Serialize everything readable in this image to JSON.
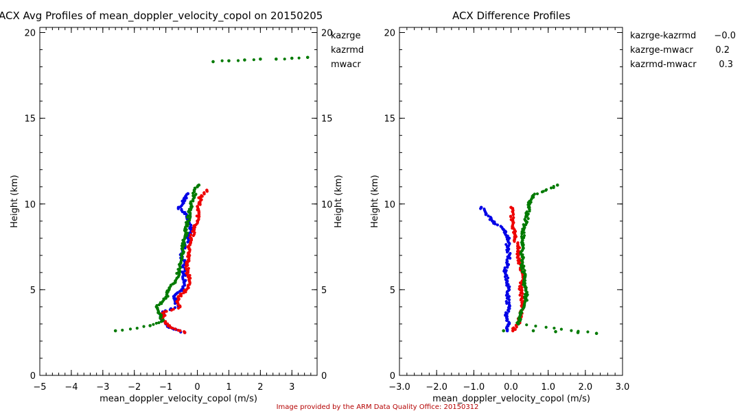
{
  "colors": {
    "blue": "#0000e6",
    "red": "#ee0000",
    "green": "#007a00",
    "axis": "#000000",
    "credit": "#b40000"
  },
  "credit": "Image provided by the ARM Data Quality Office: 20150312",
  "chart_data": [
    {
      "type": "scatter",
      "title": "ACX Avg Profiles of mean_doppler_velocity_copol on 20150205",
      "xlabel": "mean_doppler_velocity_copol (m/s)",
      "ylabel": "Height (km)",
      "ylabel_right": "Height (km)",
      "xlim": [
        -5,
        3.8
      ],
      "ylim": [
        0,
        20.3
      ],
      "x_ticks": [
        -5,
        -4,
        -3,
        -2,
        -1,
        0,
        1,
        2,
        3
      ],
      "y_ticks": [
        0,
        5,
        10,
        15,
        20
      ],
      "grid": false,
      "legend": "top-right",
      "series": [
        {
          "name": "kazrge",
          "color": "blue",
          "x": [
            -0.4,
            -0.55,
            -0.75,
            -0.9,
            -1.0,
            -1.15,
            -1.1,
            -0.6,
            -0.7,
            -0.75,
            -0.5,
            -0.4,
            -0.45,
            -0.4,
            -0.5,
            -0.4,
            -0.3,
            -0.2,
            -0.3,
            -0.4,
            -0.6,
            -0.4,
            -0.3
          ],
          "y": [
            2.5,
            2.6,
            2.7,
            2.8,
            3.0,
            3.3,
            3.7,
            4.0,
            4.3,
            4.6,
            5.0,
            5.5,
            6.0,
            6.5,
            7.0,
            7.5,
            8.0,
            8.5,
            9.0,
            9.5,
            9.8,
            10.2,
            10.6
          ]
        },
        {
          "name": "kazrmd",
          "color": "red",
          "x": [
            -0.4,
            -0.55,
            -0.7,
            -0.85,
            -0.95,
            -1.1,
            -1.05,
            -0.55,
            -0.65,
            -0.6,
            -0.35,
            -0.25,
            -0.3,
            -0.35,
            -0.25,
            -0.3,
            -0.2,
            -0.1,
            0.0,
            0.05,
            0.05,
            0.1,
            0.3
          ],
          "y": [
            2.5,
            2.6,
            2.7,
            2.8,
            3.0,
            3.3,
            3.7,
            4.0,
            4.3,
            4.6,
            5.0,
            5.5,
            6.0,
            6.5,
            7.0,
            7.5,
            8.0,
            8.5,
            9.0,
            9.5,
            10.0,
            10.4,
            10.8
          ]
        },
        {
          "name": "mwacr",
          "color": "green",
          "x": [
            -2.6,
            -1.5,
            -1.1,
            -1.2,
            -1.3,
            -1.0,
            -0.9,
            -0.7,
            -0.6,
            -0.55,
            -0.5,
            -0.45,
            -0.4,
            -0.35,
            -0.3,
            -0.25,
            -0.2,
            -0.1,
            -0.1,
            0.0,
            0.05,
            0.5,
            1.0,
            1.5,
            2.0,
            2.5,
            3.0,
            3.5
          ],
          "y": [
            2.6,
            2.9,
            3.2,
            3.6,
            4.0,
            4.5,
            5.0,
            5.5,
            6.0,
            6.5,
            7.0,
            7.5,
            8.0,
            8.5,
            9.0,
            9.5,
            10.0,
            10.4,
            10.8,
            11.0,
            11.1,
            18.3,
            18.35,
            18.4,
            18.45,
            18.45,
            18.5,
            18.55
          ]
        }
      ]
    },
    {
      "type": "scatter",
      "title": "ACX Difference Profiles",
      "xlabel": "mean_doppler_velocity_copol (m/s)",
      "ylabel": "Height (km)",
      "xlim": [
        -3.0,
        3.0
      ],
      "ylim": [
        0,
        20.3
      ],
      "x_ticks": [
        -3.0,
        -2.0,
        -1.0,
        0.0,
        1.0,
        2.0,
        3.0
      ],
      "x_tick_labels": [
        "−3.0",
        "−2.0",
        "−1.0",
        "0.0",
        "1.0",
        "2.0",
        "3.0"
      ],
      "y_ticks": [
        0,
        5,
        10,
        15,
        20
      ],
      "grid": false,
      "legend": "top-right",
      "series": [
        {
          "name": "kazrge-kazrmd",
          "value": "−0.0",
          "color": "blue",
          "x": [
            -0.1,
            -0.05,
            -0.15,
            -0.05,
            -0.1,
            -0.05,
            -0.1,
            -0.15,
            -0.1,
            -0.05,
            -0.1,
            -0.05,
            -0.2,
            -0.5,
            -0.8
          ],
          "y": [
            2.6,
            3.0,
            3.5,
            4.0,
            4.5,
            5.0,
            5.5,
            6.0,
            6.5,
            7.0,
            7.5,
            8.0,
            8.5,
            9.0,
            9.8
          ]
        },
        {
          "name": "kazrge-mwacr",
          "value": "0.2",
          "color": "red",
          "x": [
            0.05,
            0.2,
            0.25,
            0.3,
            0.3,
            0.25,
            0.3,
            0.3,
            0.25,
            0.2,
            0.2,
            0.1,
            0.05,
            0.0
          ],
          "y": [
            2.6,
            3.0,
            3.5,
            4.0,
            4.5,
            5.0,
            5.5,
            6.0,
            6.5,
            7.0,
            7.5,
            8.0,
            9.0,
            9.8
          ]
        },
        {
          "name": "kazrmd-mwacr",
          "value": "0.3",
          "color": "green",
          "x": [
            -0.2,
            0.6,
            1.2,
            1.8,
            2.3,
            0.2,
            0.25,
            0.35,
            0.4,
            0.4,
            0.35,
            0.35,
            0.3,
            0.3,
            0.3,
            0.4,
            0.5,
            0.6,
            1.25
          ],
          "y": [
            2.6,
            2.6,
            2.55,
            2.5,
            2.45,
            3.0,
            3.5,
            4.0,
            4.5,
            5.0,
            5.5,
            6.0,
            6.5,
            7.0,
            8.0,
            9.0,
            10.0,
            10.5,
            11.1
          ]
        }
      ]
    }
  ]
}
